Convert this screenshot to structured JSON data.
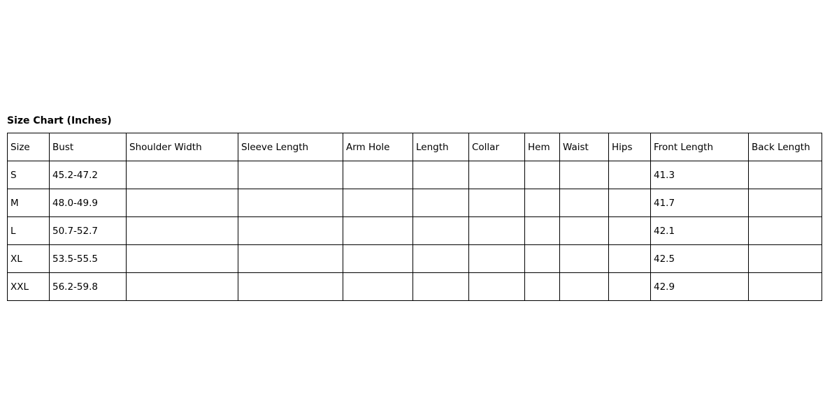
{
  "title": "Size Chart (Inches)",
  "headers": [
    "Size",
    "Bust",
    "Shoulder Width",
    "Sleeve Length",
    "Arm Hole",
    "Length",
    "Collar",
    "Hem",
    "Waist",
    "Hips",
    "Front Length",
    "Back Length"
  ],
  "rows": [
    [
      "S",
      "45.2-47.2",
      "",
      "",
      "",
      "",
      "",
      "",
      "",
      "",
      "41.3",
      ""
    ],
    [
      "M",
      "48.0-49.9",
      "",
      "",
      "",
      "",
      "",
      "",
      "",
      "",
      "41.7",
      ""
    ],
    [
      "L",
      "50.7-52.7",
      "",
      "",
      "",
      "",
      "",
      "",
      "",
      "",
      "42.1",
      ""
    ],
    [
      "XL",
      "53.5-55.5",
      "",
      "",
      "",
      "",
      "",
      "",
      "",
      "",
      "42.5",
      ""
    ],
    [
      "XXL",
      "56.2-59.8",
      "",
      "",
      "",
      "",
      "",
      "",
      "",
      "",
      "42.9",
      ""
    ]
  ]
}
